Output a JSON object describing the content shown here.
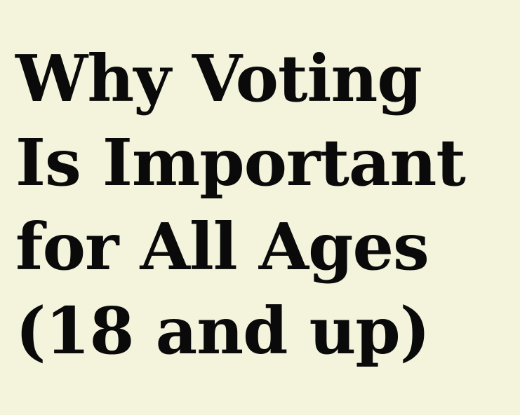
{
  "headline": {
    "lines": [
      "Why Voting",
      "Is Important",
      "for All Ages",
      "(18 and up)"
    ]
  },
  "colors": {
    "background": "#f4f3dc",
    "text": "#0a0a0a"
  }
}
